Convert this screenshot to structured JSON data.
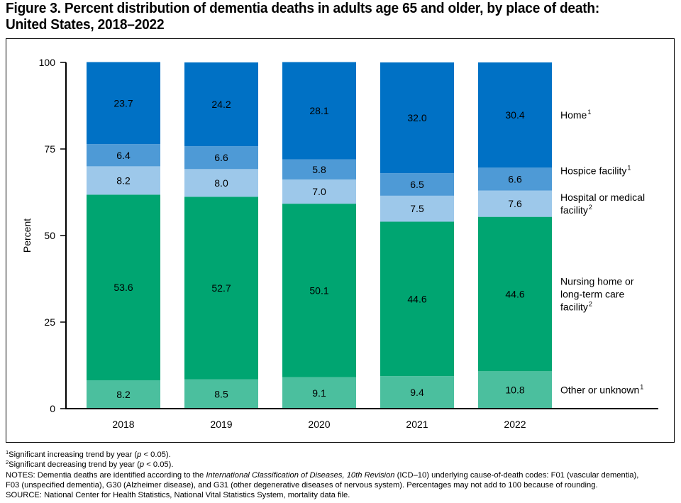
{
  "title": {
    "line1": "Figure 3. Percent distribution of dementia deaths in adults age 65 and older, by place of death:",
    "line2": "United States, 2018–2022"
  },
  "chart_data": {
    "type": "bar",
    "stacked": true,
    "categories": [
      "2018",
      "2019",
      "2020",
      "2021",
      "2022"
    ],
    "ylabel": "Percent",
    "xlabel": "",
    "ylim": [
      0,
      100
    ],
    "yticks": [
      "0",
      "25",
      "50",
      "75",
      "100"
    ],
    "grid": false,
    "legend": "right, aligned with stack segments",
    "series": [
      {
        "name": "Other or unknown",
        "sup": "1",
        "color": "#4bbf9e",
        "values": [
          8.2,
          8.5,
          9.1,
          9.4,
          10.8
        ],
        "labels": [
          "8.2",
          "8.5",
          "9.1",
          "9.4",
          "10.8"
        ]
      },
      {
        "name": "Nursing home or long-term care facility",
        "name_lines": [
          "Nursing home or",
          "long-term care",
          "facility"
        ],
        "sup": "2",
        "color": "#00a571",
        "values": [
          53.6,
          52.7,
          50.1,
          44.6,
          44.6
        ],
        "labels": [
          "53.6",
          "52.7",
          "50.1",
          "44.6",
          "44.6"
        ]
      },
      {
        "name": "Hospital or medical facility",
        "name_lines": [
          "Hospital or medical",
          "facility"
        ],
        "sup": "2",
        "color": "#9dc8ea",
        "values": [
          8.2,
          8.0,
          7.0,
          7.5,
          7.6
        ],
        "labels": [
          "8.2",
          "8.0",
          "7.0",
          "7.5",
          "7.6"
        ]
      },
      {
        "name": "Hospice facility",
        "sup": "1",
        "color": "#4e9ad6",
        "values": [
          6.4,
          6.6,
          5.8,
          6.5,
          6.6
        ],
        "labels": [
          "6.4",
          "6.6",
          "5.8",
          "6.5",
          "6.6"
        ]
      },
      {
        "name": "Home",
        "sup": "1",
        "color": "#0071c5",
        "values": [
          23.7,
          24.2,
          28.1,
          32.0,
          30.4
        ],
        "labels": [
          "23.7",
          "24.2",
          "28.1",
          "32.0",
          "30.4"
        ]
      }
    ]
  },
  "notes": {
    "fn1_text": "Significant increasing trend by year (",
    "fn1_p": "p",
    "fn1_rest": " < 0.05).",
    "fn2_text": "Significant decreasing trend by year (",
    "fn2_p": "p",
    "fn2_rest": " < 0.05).",
    "notes_a": "NOTES: Dementia deaths are identified according to the ",
    "notes_icd": "International Classification of Diseases, 10th Revision",
    "notes_b": " (ICD–10) underlying cause-of-death codes: F01 (vascular dementia),",
    "notes_line2": "F03 (unspecified dementia), G30 (Alzheimer disease), and G31 (other degenerative diseases of nervous system). Percentages may not add to 100 because of rounding.",
    "source": "SOURCE: National Center for Health Statistics, National Vital Statistics System, mortality data file."
  }
}
